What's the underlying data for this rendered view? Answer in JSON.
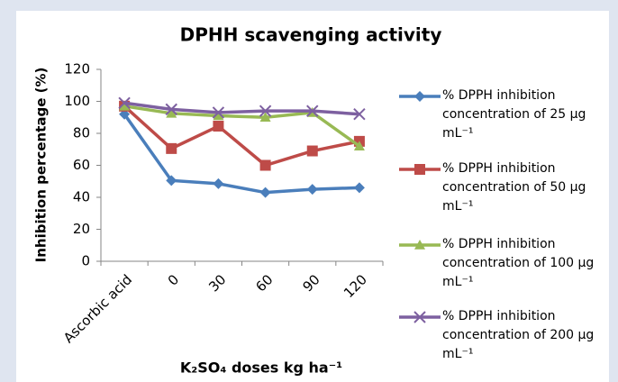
{
  "chart_data": {
    "type": "line",
    "title": "DPHH scavenging activity",
    "x_label": "K₂SO₄ doses kg ha⁻¹",
    "y_label": "Inhibition percentage (%)",
    "categories": [
      "Ascorbic acid",
      "0",
      "30",
      "60",
      "90",
      "120"
    ],
    "ylim": [
      0,
      120
    ],
    "yticks": [
      0,
      20,
      40,
      60,
      80,
      100,
      120
    ],
    "grid": false,
    "legend": "right",
    "series": [
      {
        "name": "% DPPH inhibition concentration of 25 µg mL⁻¹",
        "color": "#4a7ebb",
        "marker": "diamond",
        "values": [
          92,
          50.5,
          48.5,
          43,
          45,
          46
        ]
      },
      {
        "name": "% DPPH inhibition concentration of 50 µg mL⁻¹",
        "color": "#be4b48",
        "marker": "square",
        "values": [
          97,
          70.5,
          84.5,
          60,
          69,
          75
        ]
      },
      {
        "name": "% DPPH inhibition concentration of 100 µg mL⁻¹",
        "color": "#98b954",
        "marker": "triangle",
        "values": [
          97,
          92.5,
          91,
          90,
          93,
          72
        ]
      },
      {
        "name": "% DPPH inhibition concentration of 200 µg mL⁻¹",
        "color": "#7d60a0",
        "marker": "x",
        "values": [
          99,
          95,
          93,
          94,
          94,
          92
        ]
      }
    ]
  }
}
